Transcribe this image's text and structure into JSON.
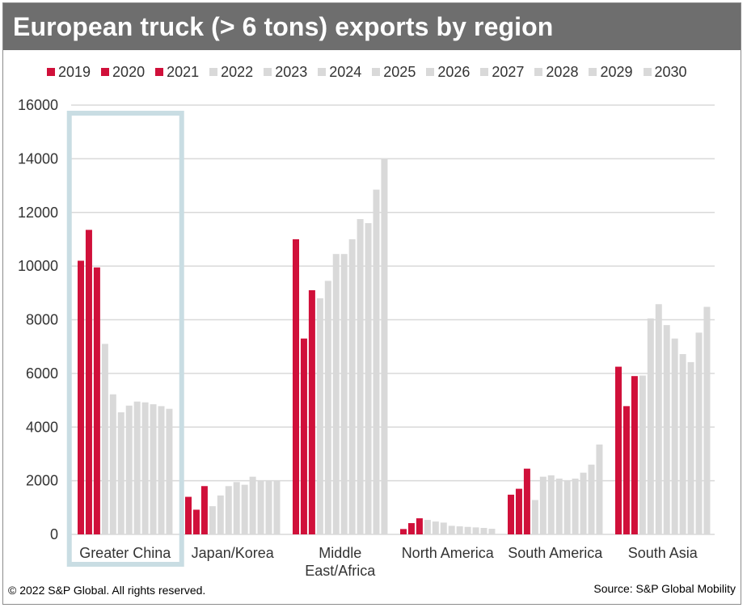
{
  "title": "European truck (> 6 tons) exports by region",
  "footer": {
    "copyright": "© 2022 S&P Global. All rights reserved.",
    "source": "Source: S&P Global Mobility"
  },
  "colors": {
    "historical": "#d0103a",
    "forecast": "#d9d9d9",
    "highlight_box": "#c9dde3",
    "grid": "#d9d9d9",
    "title_bg": "#6e6e6e"
  },
  "highlight": "Greater China",
  "chart_data": {
    "type": "bar",
    "title": "European truck (> 6 tons) exports by region",
    "ylim": [
      0,
      16000
    ],
    "yticks": [
      "0",
      "2000",
      "4000",
      "6000",
      "8000",
      "10000",
      "12000",
      "14000",
      "16000"
    ],
    "grid": true,
    "legend_position": "top",
    "categories": [
      "Greater China",
      "Japan/Korea",
      "Middle East/Africa",
      "North America",
      "South America",
      "South Asia"
    ],
    "category_lines": [
      [
        "Greater China"
      ],
      [
        "Japan/Korea"
      ],
      [
        "Middle",
        "East/Africa"
      ],
      [
        "North America"
      ],
      [
        "South America"
      ],
      [
        "South Asia"
      ]
    ],
    "series": [
      {
        "name": "2019",
        "historical": true,
        "values": [
          10200,
          1400,
          11000,
          200,
          1480,
          6250
        ]
      },
      {
        "name": "2020",
        "historical": true,
        "values": [
          11350,
          920,
          7300,
          420,
          1700,
          4780
        ]
      },
      {
        "name": "2021",
        "historical": true,
        "values": [
          9950,
          1800,
          9100,
          600,
          2450,
          5900
        ]
      },
      {
        "name": "2022",
        "historical": false,
        "values": [
          7100,
          1050,
          8800,
          540,
          1280,
          5920
        ]
      },
      {
        "name": "2023",
        "historical": false,
        "values": [
          5220,
          1450,
          9450,
          480,
          2150,
          8050
        ]
      },
      {
        "name": "2024",
        "historical": false,
        "values": [
          4550,
          1800,
          10450,
          440,
          2200,
          8580
        ]
      },
      {
        "name": "2025",
        "historical": false,
        "values": [
          4800,
          1950,
          10450,
          320,
          2080,
          7800
        ]
      },
      {
        "name": "2026",
        "historical": false,
        "values": [
          4950,
          1850,
          11000,
          300,
          2000,
          7300
        ]
      },
      {
        "name": "2027",
        "historical": false,
        "values": [
          4920,
          2150,
          11750,
          280,
          2080,
          6720
        ]
      },
      {
        "name": "2028",
        "historical": false,
        "values": [
          4850,
          2000,
          11600,
          260,
          2300,
          6420
        ]
      },
      {
        "name": "2029",
        "historical": false,
        "values": [
          4780,
          2000,
          12850,
          240,
          2600,
          7520
        ]
      },
      {
        "name": "2030",
        "historical": false,
        "values": [
          4680,
          2000,
          14000,
          210,
          3350,
          8480
        ]
      }
    ]
  }
}
